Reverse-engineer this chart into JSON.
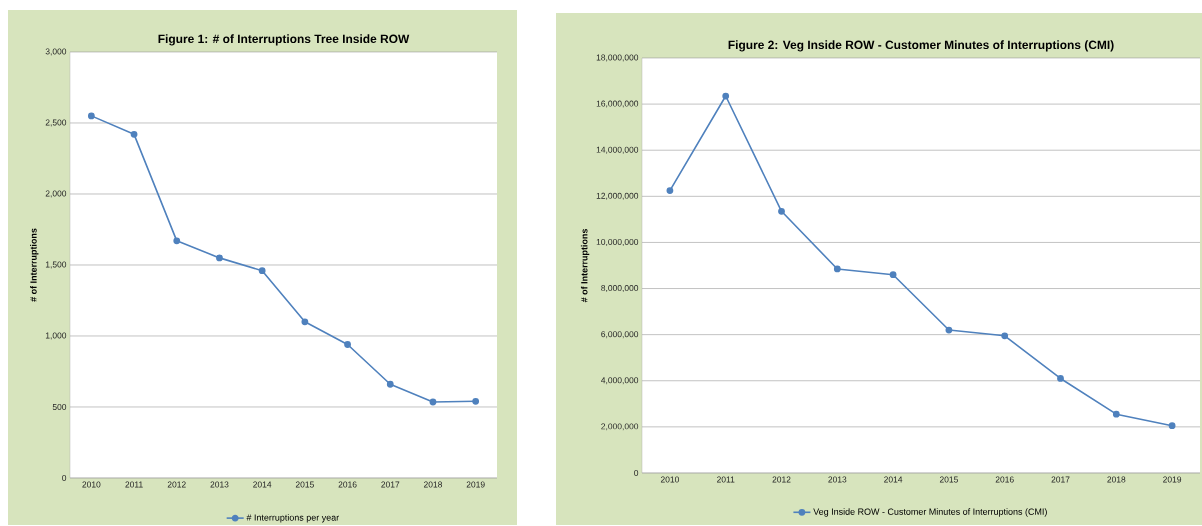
{
  "chart_data": [
    {
      "type": "line",
      "title": "Figure 1:  # of Interruptions Tree Inside ROW",
      "ylabel": "# of Interruptions",
      "categories": [
        "2010",
        "2011",
        "2012",
        "2013",
        "2014",
        "2015",
        "2016",
        "2017",
        "2018",
        "2019"
      ],
      "series": [
        {
          "name": "# Interruptions per year",
          "color": "#4f81bd",
          "values": [
            2550,
            2420,
            1670,
            1550,
            1460,
            1100,
            940,
            660,
            535,
            540
          ]
        }
      ],
      "ylim": [
        0,
        3000
      ],
      "yticks": [
        0,
        {
          "value": 500,
          "label": "500"
        },
        {
          "value": 1000,
          "label": "1,000"
        },
        {
          "value": 1500,
          "label": "1,500"
        },
        {
          "value": 2000,
          "label": "2,000"
        },
        {
          "value": 2500,
          "label": "2,500"
        },
        {
          "value": 3000,
          "label": "3,000"
        }
      ],
      "grid": "y",
      "legend": "bottom",
      "marker": "circle",
      "line_style": "solid"
    },
    {
      "type": "line",
      "title": "Figure 2:  Veg Inside ROW - Customer Minutes of Interruptions (CMI)",
      "ylabel": "# of Interruptions",
      "categories": [
        "2010",
        "2011",
        "2012",
        "2013",
        "2014",
        "2015",
        "2016",
        "2017",
        "2018",
        "2019"
      ],
      "series": [
        {
          "name": "Veg Inside ROW - Customer Minutes of Interruptions (CMI)",
          "color": "#4f81bd",
          "values": [
            12250000,
            16350000,
            11350000,
            8850000,
            8600000,
            6200000,
            5950000,
            4100000,
            2550000,
            2050000
          ]
        }
      ],
      "ylim": [
        0,
        18000000
      ],
      "yticks": [
        0,
        {
          "value": 2000000,
          "label": "2,000,000"
        },
        {
          "value": 4000000,
          "label": "4,000,000"
        },
        {
          "value": 6000000,
          "label": "6,000,000"
        },
        {
          "value": 8000000,
          "label": "8,000,000"
        },
        {
          "value": 10000000,
          "label": "10,000,000"
        },
        {
          "value": 12000000,
          "label": "12,000,000"
        },
        {
          "value": 14000000,
          "label": "14,000,000"
        },
        {
          "value": 16000000,
          "label": "16,000,000"
        },
        {
          "value": 18000000,
          "label": "18,000,000"
        }
      ],
      "grid": "y",
      "legend": "bottom",
      "marker": "circle",
      "line_style": "solid"
    }
  ]
}
